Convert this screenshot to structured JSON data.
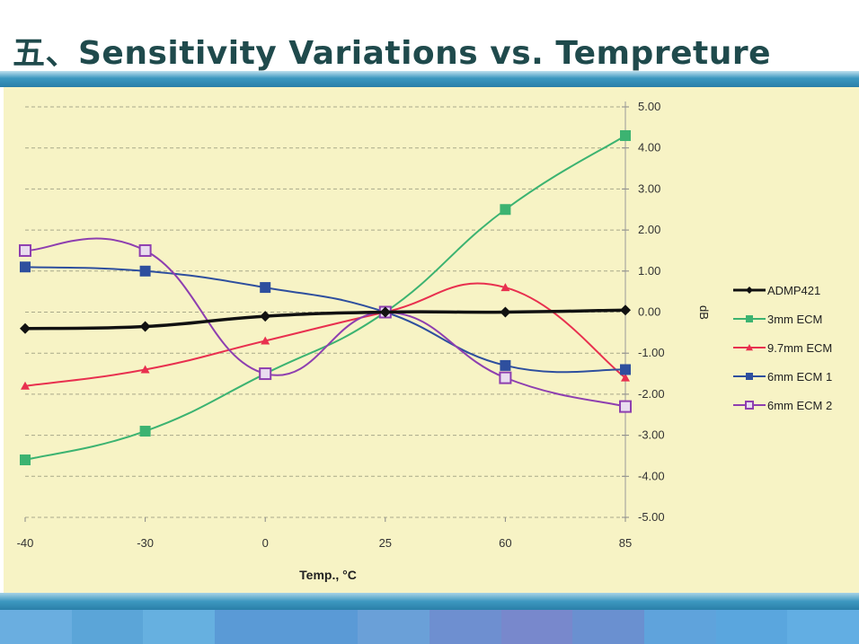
{
  "slide": {
    "title": "五、Sensitivity Variations vs. Tempreture"
  },
  "colors": {
    "title": "#1f4a4c",
    "panel": "#f7f3c5",
    "bar": "#2a7fa8"
  },
  "chart_data": {
    "type": "line",
    "categories": [
      "-40",
      "-30",
      "0",
      "25",
      "60",
      "85"
    ],
    "xlabel": "Temp., °C",
    "ylabel": "dB",
    "ylim": [
      -5,
      5
    ],
    "yticks": [
      "5.00",
      "4.00",
      "3.00",
      "2.00",
      "1.00",
      "0.00",
      "-1.00",
      "-2.00",
      "-3.00",
      "-4.00",
      "-5.00"
    ],
    "y_axis_side": "right",
    "grid": true,
    "legend_position": "right",
    "series": [
      {
        "name": "ADMP421",
        "color": "#111111",
        "marker": "diamond",
        "values": [
          -0.4,
          -0.35,
          -0.1,
          0.0,
          0.0,
          0.05
        ]
      },
      {
        "name": "3mm ECM",
        "color": "#3cb371",
        "marker": "square",
        "values": [
          -3.6,
          -2.9,
          -1.5,
          0.0,
          2.5,
          4.3
        ]
      },
      {
        "name": "9.7mm ECM",
        "color": "#e8304f",
        "marker": "triangle",
        "values": [
          -1.8,
          -1.4,
          -0.7,
          0.0,
          0.6,
          -1.6
        ]
      },
      {
        "name": "6mm ECM 1",
        "color": "#2e4f9e",
        "marker": "square",
        "values": [
          1.1,
          1.0,
          0.6,
          0.0,
          -1.3,
          -1.4
        ]
      },
      {
        "name": "6mm ECM 2",
        "color": "#8e3fb0",
        "marker": "open-square",
        "values": [
          1.5,
          1.5,
          -1.5,
          0.0,
          -1.6,
          -2.3
        ]
      }
    ]
  },
  "footer_colors": [
    "#6aaee0",
    "#5ba5d8",
    "#66b0e0",
    "#5a9ad6",
    "#5a9ad6",
    "#6aa0d8",
    "#6e8fd0",
    "#7888cc",
    "#6a90d0",
    "#5fa3dc",
    "#5aa6de",
    "#62aee3"
  ]
}
